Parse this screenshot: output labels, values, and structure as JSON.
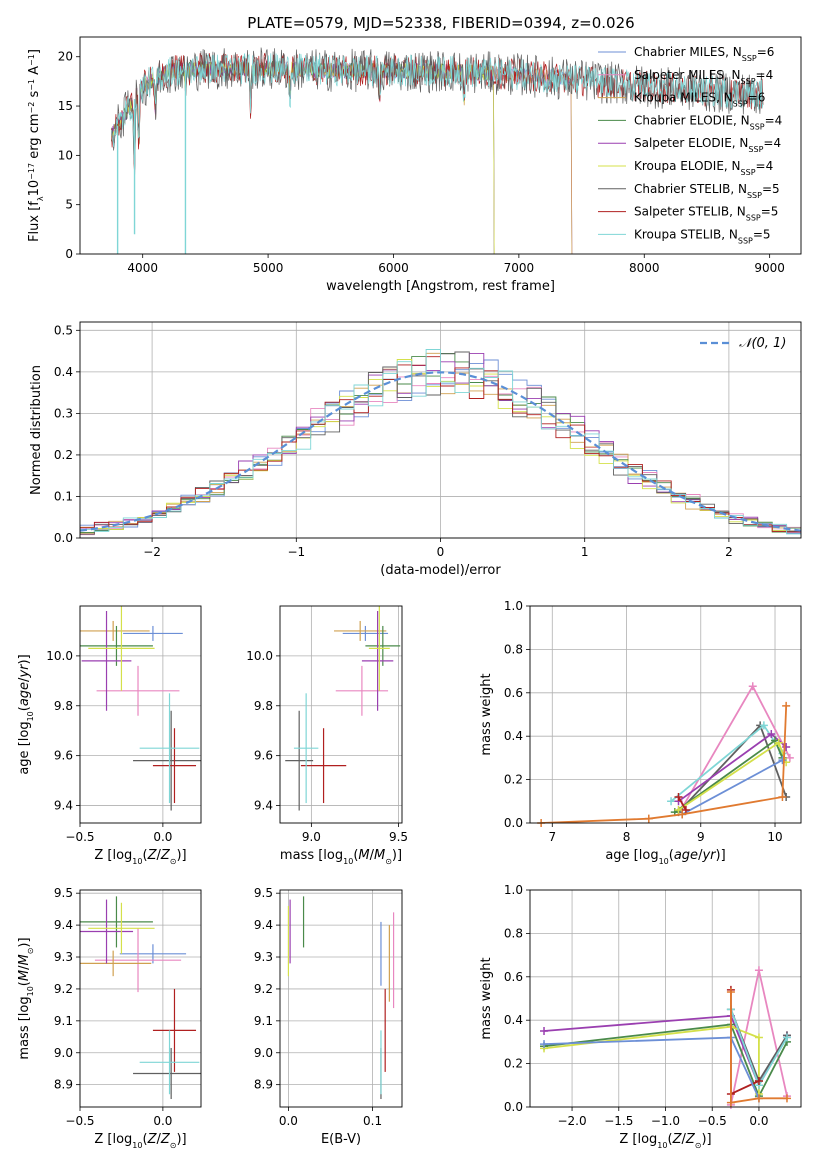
{
  "figure": {
    "title": "PLATE=0579, MJD=52338, FIBERID=0394, z=0.026"
  },
  "colors": {
    "Chabrier MILES": "#6c8fd6",
    "Salpeter MILES": "#e887c0",
    "Kroupa MILES": "#d0a050",
    "Chabrier ELODIE": "#4a8a4a",
    "Salpeter ELODIE": "#9a3fb0",
    "Kroupa ELODIE": "#d4e04a",
    "Chabrier STELIB": "#606060",
    "Salpeter STELIB": "#b02020",
    "Kroupa STELIB": "#7fd6d6",
    "orange_track": "#e07a30",
    "normal_curve": "#5a8fd6"
  },
  "legend_spectrum": [
    {
      "model": "Chabrier MILES",
      "label": "Chabrier MILES, N",
      "sub": "SSP",
      "tail": "=6"
    },
    {
      "model": "Salpeter MILES",
      "label": "Salpeter MILES, N",
      "sub": "SSP",
      "tail": "=4"
    },
    {
      "model": "Kroupa MILES",
      "label": "Kroupa MILES, N",
      "sub": "SSP",
      "tail": "=6"
    },
    {
      "model": "Chabrier ELODIE",
      "label": "Chabrier ELODIE, N",
      "sub": "SSP",
      "tail": "=4"
    },
    {
      "model": "Salpeter ELODIE",
      "label": "Salpeter ELODIE, N",
      "sub": "SSP",
      "tail": "=4"
    },
    {
      "model": "Kroupa ELODIE",
      "label": "Kroupa ELODIE, N",
      "sub": "SSP",
      "tail": "=4"
    },
    {
      "model": "Chabrier STELIB",
      "label": "Chabrier STELIB, N",
      "sub": "SSP",
      "tail": "=5"
    },
    {
      "model": "Salpeter STELIB",
      "label": "Salpeter STELIB, N",
      "sub": "SSP",
      "tail": "=5"
    },
    {
      "model": "Kroupa STELIB",
      "label": "Kroupa STELIB, N",
      "sub": "SSP",
      "tail": "=5"
    }
  ],
  "chart_data": [
    {
      "id": "spectrum",
      "type": "line",
      "xlabel": "wavelength [Angstrom, rest frame]",
      "ylabel": "Flux [fλ10⁻¹⁷ erg cm⁻² s⁻¹ A⁻¹]",
      "xlim": [
        3500,
        9250
      ],
      "ylim": [
        0,
        22
      ],
      "xticks": [
        4000,
        5000,
        6000,
        7000,
        8000,
        9000
      ],
      "yticks": [
        0,
        5,
        10,
        15,
        20
      ],
      "continuum_anchors": [
        [
          3750,
          12
        ],
        [
          3900,
          15
        ],
        [
          4000,
          17
        ],
        [
          4200,
          18.5
        ],
        [
          4500,
          18.8
        ],
        [
          5000,
          18.8
        ],
        [
          5500,
          18.6
        ],
        [
          6000,
          18.6
        ],
        [
          6500,
          18.5
        ],
        [
          7000,
          18.2
        ],
        [
          7500,
          17.6
        ],
        [
          8000,
          17.0
        ],
        [
          8500,
          16.5
        ],
        [
          8950,
          16.2
        ]
      ],
      "grid": false
    },
    {
      "id": "residuals",
      "type": "histogram",
      "xlabel": "(data-model)/error",
      "ylabel": "Normed distribution",
      "xlim": [
        -2.5,
        2.5
      ],
      "ylim": [
        0,
        0.52
      ],
      "xticks": [
        -2,
        -1,
        0,
        1,
        2
      ],
      "yticks": [
        0.0,
        0.1,
        0.2,
        0.3,
        0.4,
        0.5
      ],
      "bin_width": 0.1,
      "reference_curve": "N(0,1)",
      "legend": "𝒩(0, 1)",
      "legend_position": "top-right",
      "grid": true
    },
    {
      "id": "z_age",
      "type": "errorbar",
      "xlabel": "Z [log₁₀(Z/Z⊙)]",
      "ylabel": "age  [log₁₀(age/yr)]",
      "xlim": [
        -0.5,
        0.23
      ],
      "ylim": [
        9.33,
        10.2
      ],
      "xticks": [
        -0.5,
        0.0
      ],
      "yticks": [
        9.4,
        9.6,
        9.8,
        10.0
      ],
      "points": [
        {
          "model": "Chabrier MILES",
          "x": -0.06,
          "xerr": 0.18,
          "y": 10.09,
          "yerr": 0.03
        },
        {
          "model": "Salpeter MILES",
          "x": -0.15,
          "xerr": 0.25,
          "y": 9.86,
          "yerr": 0.1
        },
        {
          "model": "Kroupa MILES",
          "x": -0.3,
          "xerr": 0.22,
          "y": 10.1,
          "yerr": 0.04
        },
        {
          "model": "Chabrier ELODIE",
          "x": -0.28,
          "xerr": 0.22,
          "y": 10.04,
          "yerr": 0.08
        },
        {
          "model": "Salpeter ELODIE",
          "x": -0.34,
          "xerr": 0.15,
          "y": 9.98,
          "yerr": 0.2
        },
        {
          "model": "Kroupa ELODIE",
          "x": -0.25,
          "xerr": 0.2,
          "y": 10.03,
          "yerr": 0.17
        },
        {
          "model": "Chabrier STELIB",
          "x": 0.05,
          "xerr": 0.23,
          "y": 9.58,
          "yerr": 0.2
        },
        {
          "model": "Salpeter STELIB",
          "x": 0.07,
          "xerr": 0.13,
          "y": 9.56,
          "yerr": 0.15
        },
        {
          "model": "Kroupa STELIB",
          "x": 0.04,
          "xerr": 0.18,
          "y": 9.63,
          "yerr": 0.22
        }
      ],
      "grid": true
    },
    {
      "id": "mass_age",
      "type": "errorbar",
      "xlabel": "mass [log₁₀(M/M⊙)]",
      "ylabel": "",
      "xlim": [
        8.82,
        9.52
      ],
      "ylim": [
        9.33,
        10.2
      ],
      "xticks": [
        9.0,
        9.5
      ],
      "yticks": [
        9.4,
        9.6,
        9.8,
        10.0
      ],
      "points": [
        {
          "model": "Chabrier MILES",
          "x": 9.31,
          "xerr": 0.13,
          "y": 10.09,
          "yerr": 0.03
        },
        {
          "model": "Salpeter MILES",
          "x": 9.29,
          "xerr": 0.15,
          "y": 9.86,
          "yerr": 0.1
        },
        {
          "model": "Kroupa MILES",
          "x": 9.28,
          "xerr": 0.15,
          "y": 10.1,
          "yerr": 0.04
        },
        {
          "model": "Chabrier ELODIE",
          "x": 9.41,
          "xerr": 0.1,
          "y": 10.04,
          "yerr": 0.08
        },
        {
          "model": "Salpeter ELODIE",
          "x": 9.38,
          "xerr": 0.09,
          "y": 9.98,
          "yerr": 0.2
        },
        {
          "model": "Kroupa ELODIE",
          "x": 9.39,
          "xerr": 0.06,
          "y": 10.03,
          "yerr": 0.17
        },
        {
          "model": "Chabrier STELIB",
          "x": 8.93,
          "xerr": 0.08,
          "y": 9.58,
          "yerr": 0.2
        },
        {
          "model": "Salpeter STELIB",
          "x": 9.07,
          "xerr": 0.13,
          "y": 9.56,
          "yerr": 0.15
        },
        {
          "model": "Kroupa STELIB",
          "x": 8.97,
          "xerr": 0.07,
          "y": 9.63,
          "yerr": 0.22
        }
      ],
      "grid": true
    },
    {
      "id": "age_weight",
      "type": "line",
      "xlabel": "age  [log₁₀(age/yr)]",
      "ylabel": "mass weight",
      "xlim": [
        6.7,
        10.35
      ],
      "ylim": [
        0,
        1.0
      ],
      "xticks": [
        7,
        8,
        9,
        10
      ],
      "yticks": [
        0.0,
        0.2,
        0.4,
        0.6,
        0.8,
        1.0
      ],
      "series": [
        {
          "model": "Salpeter MILES",
          "points": [
            [
              8.75,
              0.07
            ],
            [
              9.7,
              0.63
            ],
            [
              10.2,
              0.3
            ]
          ]
        },
        {
          "model": "Chabrier STELIB",
          "points": [
            [
              8.7,
              0.05
            ],
            [
              9.8,
              0.45
            ],
            [
              10.15,
              0.12
            ]
          ]
        },
        {
          "model": "Kroupa STELIB",
          "points": [
            [
              8.6,
              0.1
            ],
            [
              9.85,
              0.45
            ],
            [
              10.1,
              0.32
            ]
          ]
        },
        {
          "model": "Salpeter ELODIE",
          "points": [
            [
              8.7,
              0.1
            ],
            [
              9.95,
              0.41
            ],
            [
              10.15,
              0.35
            ]
          ]
        },
        {
          "model": "Chabrier ELODIE",
          "points": [
            [
              8.65,
              0.05
            ],
            [
              10.0,
              0.38
            ],
            [
              10.1,
              0.3
            ]
          ]
        },
        {
          "model": "Kroupa ELODIE",
          "points": [
            [
              8.7,
              0.06
            ],
            [
              10.05,
              0.37
            ],
            [
              10.15,
              0.28
            ]
          ]
        },
        {
          "model": "Chabrier MILES",
          "points": [
            [
              8.75,
              0.04
            ],
            [
              10.1,
              0.29
            ]
          ]
        },
        {
          "model": "Salpeter STELIB",
          "points": [
            [
              8.7,
              0.12
            ],
            [
              8.8,
              0.06
            ]
          ]
        },
        {
          "model": "orange_track",
          "points": [
            [
              6.85,
              0.0
            ],
            [
              8.3,
              0.02
            ],
            [
              8.75,
              0.04
            ],
            [
              10.1,
              0.12
            ],
            [
              10.15,
              0.54
            ]
          ]
        }
      ],
      "grid": true
    },
    {
      "id": "z_mass",
      "type": "errorbar",
      "xlabel": "Z [log₁₀(Z/Z⊙)]",
      "ylabel": "mass [log₁₀(M/M⊙)]",
      "xlim": [
        -0.5,
        0.23
      ],
      "ylim": [
        8.83,
        9.51
      ],
      "xticks": [
        -0.5,
        0.0
      ],
      "yticks": [
        8.9,
        9.0,
        9.1,
        9.2,
        9.3,
        9.4,
        9.5
      ],
      "points": [
        {
          "model": "Chabrier MILES",
          "x": -0.06,
          "xerr": 0.2,
          "y": 9.31,
          "yerr": 0.03
        },
        {
          "model": "Salpeter MILES",
          "x": -0.15,
          "xerr": 0.26,
          "y": 9.29,
          "yerr": 0.1
        },
        {
          "model": "Kroupa MILES",
          "x": -0.3,
          "xerr": 0.23,
          "y": 9.28,
          "yerr": 0.04
        },
        {
          "model": "Chabrier ELODIE",
          "x": -0.28,
          "xerr": 0.22,
          "y": 9.41,
          "yerr": 0.08
        },
        {
          "model": "Salpeter ELODIE",
          "x": -0.34,
          "xerr": 0.16,
          "y": 9.38,
          "yerr": 0.1
        },
        {
          "model": "Kroupa ELODIE",
          "x": -0.25,
          "xerr": 0.2,
          "y": 9.39,
          "yerr": 0.08
        },
        {
          "model": "Chabrier STELIB",
          "x": 0.05,
          "xerr": 0.23,
          "y": 8.935,
          "yerr": 0.08
        },
        {
          "model": "Salpeter STELIB",
          "x": 0.07,
          "xerr": 0.13,
          "y": 9.07,
          "yerr": 0.13
        },
        {
          "model": "Kroupa STELIB",
          "x": 0.04,
          "xerr": 0.18,
          "y": 8.97,
          "yerr": 0.1
        }
      ],
      "grid": true
    },
    {
      "id": "ebv_mass",
      "type": "errorbar",
      "xlabel": "E(B-V)",
      "ylabel": "",
      "xlim": [
        -0.01,
        0.135
      ],
      "ylim": [
        8.83,
        9.51
      ],
      "xticks": [
        0.0,
        0.1
      ],
      "yticks": [
        8.9,
        9.0,
        9.1,
        9.2,
        9.3,
        9.4,
        9.5
      ],
      "points": [
        {
          "model": "Chabrier MILES",
          "x": 0.11,
          "xerr": 0,
          "y": 9.31,
          "yerr": 0.1
        },
        {
          "model": "Salpeter MILES",
          "x": 0.125,
          "xerr": 0,
          "y": 9.29,
          "yerr": 0.15
        },
        {
          "model": "Kroupa MILES",
          "x": 0.12,
          "xerr": 0,
          "y": 9.28,
          "yerr": 0.12
        },
        {
          "model": "Chabrier ELODIE",
          "x": 0.018,
          "xerr": 0,
          "y": 9.41,
          "yerr": 0.08
        },
        {
          "model": "Salpeter ELODIE",
          "x": 0.002,
          "xerr": 0,
          "y": 9.38,
          "yerr": 0.1
        },
        {
          "model": "Kroupa ELODIE",
          "x": 0.0,
          "xerr": 0,
          "y": 9.35,
          "yerr": 0.11
        },
        {
          "model": "Chabrier STELIB",
          "x": 0.11,
          "xerr": 0,
          "y": 8.935,
          "yerr": 0.08
        },
        {
          "model": "Salpeter STELIB",
          "x": 0.115,
          "xerr": 0,
          "y": 9.07,
          "yerr": 0.13
        },
        {
          "model": "Kroupa STELIB",
          "x": 0.11,
          "xerr": 0,
          "y": 8.97,
          "yerr": 0.1
        }
      ],
      "grid": true
    },
    {
      "id": "z_weight",
      "type": "line",
      "xlabel": "Z [log₁₀(Z/Z⊙)]",
      "ylabel": "mass weight",
      "xlim": [
        -2.45,
        0.45
      ],
      "ylim": [
        0,
        1.0
      ],
      "xticks": [
        -2.0,
        -1.5,
        -1.0,
        -0.5,
        0.0
      ],
      "yticks": [
        0.0,
        0.2,
        0.4,
        0.6,
        0.8,
        1.0
      ],
      "series": [
        {
          "model": "Salpeter MILES",
          "points": [
            [
              -0.3,
              0.01
            ],
            [
              0.0,
              0.63
            ],
            [
              0.3,
              0.05
            ]
          ]
        },
        {
          "model": "Salpeter ELODIE",
          "points": [
            [
              -2.3,
              0.35
            ],
            [
              -0.3,
              0.42
            ],
            [
              0.0,
              0.1
            ],
            [
              0.3,
              0.33
            ]
          ]
        },
        {
          "model": "Chabrier ELODIE",
          "points": [
            [
              -2.3,
              0.28
            ],
            [
              -0.3,
              0.38
            ],
            [
              0.0,
              0.05
            ],
            [
              0.3,
              0.3
            ]
          ]
        },
        {
          "model": "Kroupa ELODIE",
          "points": [
            [
              -2.3,
              0.27
            ],
            [
              -0.3,
              0.37
            ],
            [
              0.0,
              0.32
            ],
            [
              0.0,
              0.06
            ]
          ]
        },
        {
          "model": "Chabrier STELIB",
          "points": [
            [
              -0.3,
              0.45
            ],
            [
              0.0,
              0.12
            ],
            [
              0.3,
              0.33
            ]
          ]
        },
        {
          "model": "Kroupa STELIB",
          "points": [
            [
              -0.3,
              0.45
            ],
            [
              0.0,
              0.1
            ],
            [
              0.3,
              0.32
            ]
          ]
        },
        {
          "model": "Salpeter STELIB",
          "points": [
            [
              -0.3,
              0.54
            ],
            [
              -0.3,
              0.06
            ],
            [
              0.0,
              0.12
            ]
          ]
        },
        {
          "model": "Chabrier MILES",
          "points": [
            [
              -2.3,
              0.29
            ],
            [
              -0.3,
              0.32
            ],
            [
              0.0,
              0.04
            ]
          ]
        },
        {
          "model": "orange_track",
          "points": [
            [
              -0.3,
              0.53
            ],
            [
              -0.3,
              0.02
            ],
            [
              0.0,
              0.04
            ],
            [
              0.3,
              0.04
            ]
          ]
        }
      ],
      "grid": true
    }
  ]
}
